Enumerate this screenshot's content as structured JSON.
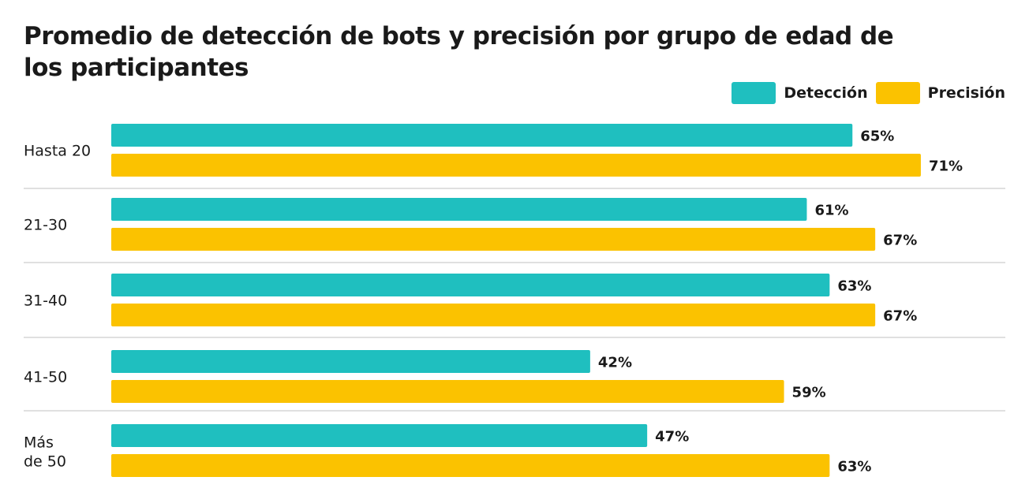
{
  "chart_data": {
    "type": "bar",
    "orientation": "horizontal",
    "title": "Promedio de detección de bots y precisión por grupo de edad de los participantes",
    "categories": [
      "Hasta 20",
      "21-30",
      "31-40",
      "41-50",
      "Más de 50"
    ],
    "series": [
      {
        "name": "Detección",
        "color": "#1fbfbf",
        "values": [
          65,
          61,
          63,
          42,
          47
        ]
      },
      {
        "name": "Precisión",
        "color": "#fbc200",
        "values": [
          71,
          67,
          67,
          59,
          63
        ]
      }
    ],
    "value_suffix": "%",
    "xlim": [
      0,
      80
    ],
    "legend_position": "top-right",
    "grid": false,
    "separators": true
  }
}
